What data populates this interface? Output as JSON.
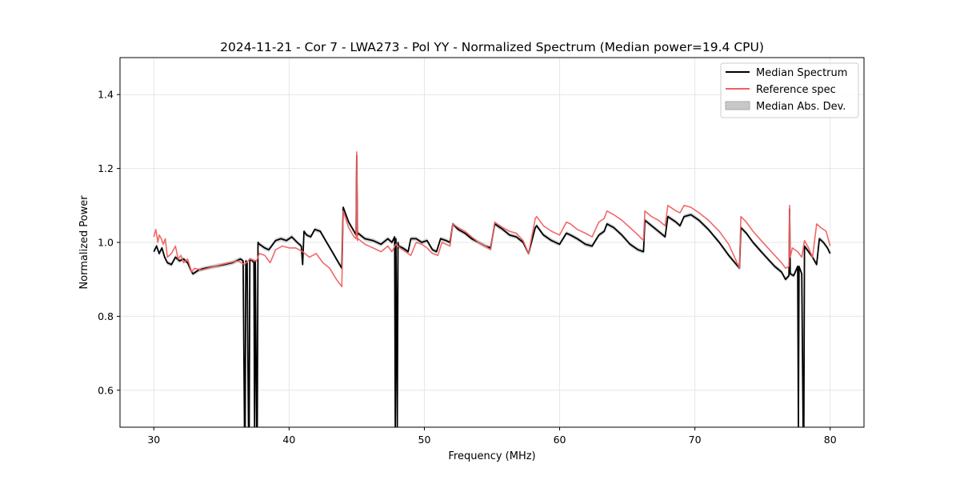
{
  "chart_data": {
    "type": "line",
    "title": "2024-11-21 - Cor 7 - LWA273 - Pol YY - Normalized Spectrum (Median power=19.4 CPU)",
    "xlabel": "Frequency (MHz)",
    "ylabel": "Normalized Power",
    "xlim": [
      27.5,
      82.5
    ],
    "ylim": [
      0.5,
      1.5
    ],
    "xticks": [
      30,
      40,
      50,
      60,
      70,
      80
    ],
    "yticks": [
      0.6,
      0.8,
      1.0,
      1.2,
      1.4
    ],
    "xtick_labels": [
      "30",
      "40",
      "50",
      "60",
      "70",
      "80"
    ],
    "ytick_labels": [
      "0.6",
      "0.8",
      "1.0",
      "1.2",
      "1.4"
    ],
    "grid": true,
    "legend_position": "top-right",
    "legend": [
      "Median Spectrum",
      "Reference spec",
      "Median Abs. Dev."
    ],
    "colors": {
      "median": "#000000",
      "reference": "#f06060",
      "mad": "#c8c8c8",
      "grid": "#e6e6e6"
    },
    "series": [
      {
        "name": "Median Spectrum",
        "x": [
          30.0,
          30.2,
          30.4,
          30.6,
          30.8,
          31.0,
          31.3,
          31.6,
          31.9,
          32.2,
          32.5,
          32.8,
          32.9,
          33.3,
          33.8,
          34.5,
          35.2,
          35.8,
          36.4,
          36.6,
          36.7,
          36.75,
          36.8,
          36.9,
          37.0,
          37.05,
          37.1,
          37.3,
          37.4,
          37.45,
          37.5,
          37.6,
          37.65,
          37.7,
          37.8,
          38.2,
          38.5,
          38.7,
          39.0,
          39.4,
          39.8,
          40.2,
          40.6,
          40.9,
          41.0,
          41.1,
          41.3,
          41.6,
          41.9,
          42.3,
          42.7,
          43.1,
          43.5,
          43.9,
          44.0,
          44.4,
          44.8,
          44.95,
          45.0,
          45.05,
          45.1,
          45.6,
          46.2,
          46.8,
          47.3,
          47.6,
          47.8,
          47.85,
          47.9,
          48.0,
          48.05,
          48.1,
          48.4,
          48.8,
          49.0,
          49.4,
          49.8,
          50.2,
          50.6,
          50.9,
          51.2,
          51.6,
          51.9,
          52.1,
          52.5,
          53.0,
          53.5,
          54.0,
          54.5,
          54.9,
          55.2,
          55.8,
          56.3,
          56.8,
          57.3,
          57.7,
          58.2,
          58.3,
          58.8,
          59.4,
          60.0,
          60.5,
          60.8,
          61.3,
          61.9,
          62.4,
          62.9,
          63.3,
          63.5,
          64.0,
          64.6,
          65.2,
          65.8,
          66.2,
          66.3,
          66.8,
          67.3,
          67.8,
          68.0,
          68.6,
          68.9,
          69.2,
          69.7,
          70.3,
          71.0,
          71.8,
          72.5,
          73.3,
          73.4,
          73.8,
          74.3,
          74.9,
          75.4,
          75.9,
          76.4,
          76.7,
          76.95,
          77.0,
          77.05,
          77.3,
          77.6,
          77.65,
          77.7,
          77.8,
          77.9,
          78.0,
          78.05,
          78.1,
          78.3,
          78.7,
          79.0,
          79.2,
          79.5,
          79.8,
          80.0
        ],
        "values": [
          0.975,
          0.99,
          0.97,
          0.985,
          0.96,
          0.945,
          0.94,
          0.96,
          0.95,
          0.955,
          0.945,
          0.92,
          0.915,
          0.925,
          0.93,
          0.935,
          0.94,
          0.945,
          0.955,
          0.95,
          0.5,
          0.5,
          0.95,
          0.945,
          0.5,
          0.5,
          0.955,
          0.95,
          0.945,
          0.5,
          0.95,
          0.5,
          0.5,
          1.0,
          0.995,
          0.985,
          0.98,
          0.99,
          1.005,
          1.01,
          1.005,
          1.015,
          1.0,
          0.99,
          0.94,
          1.03,
          1.02,
          1.015,
          1.035,
          1.03,
          1.005,
          0.98,
          0.955,
          0.93,
          1.095,
          1.055,
          1.03,
          1.02,
          1.235,
          1.02,
          1.025,
          1.01,
          1.005,
          0.995,
          1.01,
          1.0,
          1.015,
          0.5,
          1.01,
          0.5,
          1.0,
          0.99,
          0.985,
          0.975,
          1.01,
          1.01,
          1.0,
          1.005,
          0.98,
          0.975,
          1.01,
          1.005,
          1.0,
          1.05,
          1.035,
          1.025,
          1.01,
          1.0,
          0.99,
          0.985,
          1.05,
          1.035,
          1.02,
          1.015,
          1.0,
          0.97,
          1.04,
          1.045,
          1.02,
          1.005,
          0.995,
          1.025,
          1.02,
          1.01,
          0.995,
          0.99,
          1.02,
          1.03,
          1.05,
          1.04,
          1.02,
          0.995,
          0.98,
          0.975,
          1.06,
          1.045,
          1.03,
          1.015,
          1.07,
          1.055,
          1.045,
          1.07,
          1.075,
          1.06,
          1.035,
          1.0,
          0.965,
          0.93,
          1.04,
          1.025,
          1.0,
          0.975,
          0.955,
          0.935,
          0.92,
          0.9,
          0.91,
          1.09,
          0.915,
          0.91,
          0.935,
          0.5,
          0.935,
          0.925,
          0.915,
          0.5,
          0.5,
          0.99,
          0.98,
          0.96,
          0.94,
          1.01,
          1.0,
          0.985,
          0.97
        ]
      },
      {
        "name": "Reference spec",
        "x": [
          30.0,
          30.15,
          30.3,
          30.4,
          30.55,
          30.7,
          30.85,
          31.0,
          31.3,
          31.6,
          31.8,
          32.0,
          32.2,
          32.5,
          32.8,
          33.0,
          33.5,
          34.0,
          34.5,
          35.0,
          35.6,
          36.2,
          36.7,
          37.1,
          37.6,
          37.8,
          38.2,
          38.6,
          39.0,
          39.5,
          40.0,
          40.5,
          41.0,
          41.5,
          42.0,
          42.5,
          43.0,
          43.5,
          43.9,
          44.0,
          44.4,
          44.8,
          44.95,
          45.0,
          45.05,
          45.1,
          45.6,
          46.2,
          46.8,
          47.3,
          47.6,
          47.9,
          48.2,
          48.6,
          49.0,
          49.4,
          49.8,
          50.2,
          50.6,
          51.0,
          51.3,
          51.6,
          51.9,
          52.1,
          52.5,
          53.0,
          53.5,
          54.0,
          54.5,
          54.9,
          55.2,
          55.8,
          56.3,
          56.8,
          57.3,
          57.7,
          58.2,
          58.3,
          58.8,
          59.4,
          60.0,
          60.5,
          60.8,
          61.3,
          61.9,
          62.4,
          62.9,
          63.3,
          63.5,
          64.0,
          64.6,
          65.2,
          65.8,
          66.2,
          66.3,
          66.8,
          67.3,
          67.8,
          68.0,
          68.6,
          68.9,
          69.2,
          69.7,
          70.3,
          71.0,
          71.8,
          72.5,
          73.3,
          73.4,
          73.8,
          74.3,
          74.9,
          75.4,
          75.9,
          76.4,
          76.7,
          76.95,
          77.0,
          77.05,
          77.2,
          77.6,
          77.9,
          78.1,
          78.4,
          78.7,
          79.0,
          79.3,
          79.7,
          80.0
        ],
        "values": [
          1.015,
          1.035,
          1.0,
          1.02,
          1.01,
          0.995,
          1.01,
          0.96,
          0.97,
          0.99,
          0.955,
          0.965,
          0.945,
          0.955,
          0.92,
          0.93,
          0.925,
          0.93,
          0.935,
          0.94,
          0.945,
          0.95,
          0.94,
          0.955,
          0.95,
          0.97,
          0.965,
          0.945,
          0.98,
          0.99,
          0.985,
          0.985,
          0.975,
          0.96,
          0.97,
          0.945,
          0.93,
          0.9,
          0.88,
          1.085,
          1.04,
          1.015,
          1.01,
          1.245,
          1.005,
          1.01,
          0.995,
          0.985,
          0.975,
          0.99,
          0.975,
          0.995,
          0.985,
          0.975,
          0.965,
          1.0,
          0.995,
          0.985,
          0.97,
          0.965,
          1.0,
          0.995,
          0.99,
          1.05,
          1.04,
          1.03,
          1.015,
          1.0,
          0.99,
          0.98,
          1.055,
          1.04,
          1.03,
          1.025,
          1.005,
          0.97,
          1.065,
          1.07,
          1.045,
          1.03,
          1.02,
          1.055,
          1.05,
          1.035,
          1.025,
          1.015,
          1.055,
          1.065,
          1.085,
          1.075,
          1.06,
          1.04,
          1.02,
          1.005,
          1.085,
          1.07,
          1.06,
          1.045,
          1.1,
          1.085,
          1.08,
          1.1,
          1.095,
          1.08,
          1.06,
          1.03,
          0.995,
          0.93,
          1.07,
          1.055,
          1.03,
          1.005,
          0.985,
          0.965,
          0.945,
          0.93,
          0.935,
          1.1,
          0.96,
          0.985,
          0.975,
          0.96,
          1.005,
          0.985,
          0.96,
          1.05,
          1.04,
          1.03,
          0.99
        ]
      },
      {
        "name": "Median Abs. Dev.",
        "values_note": "band of ±0.006 around Median Spectrum"
      }
    ]
  }
}
